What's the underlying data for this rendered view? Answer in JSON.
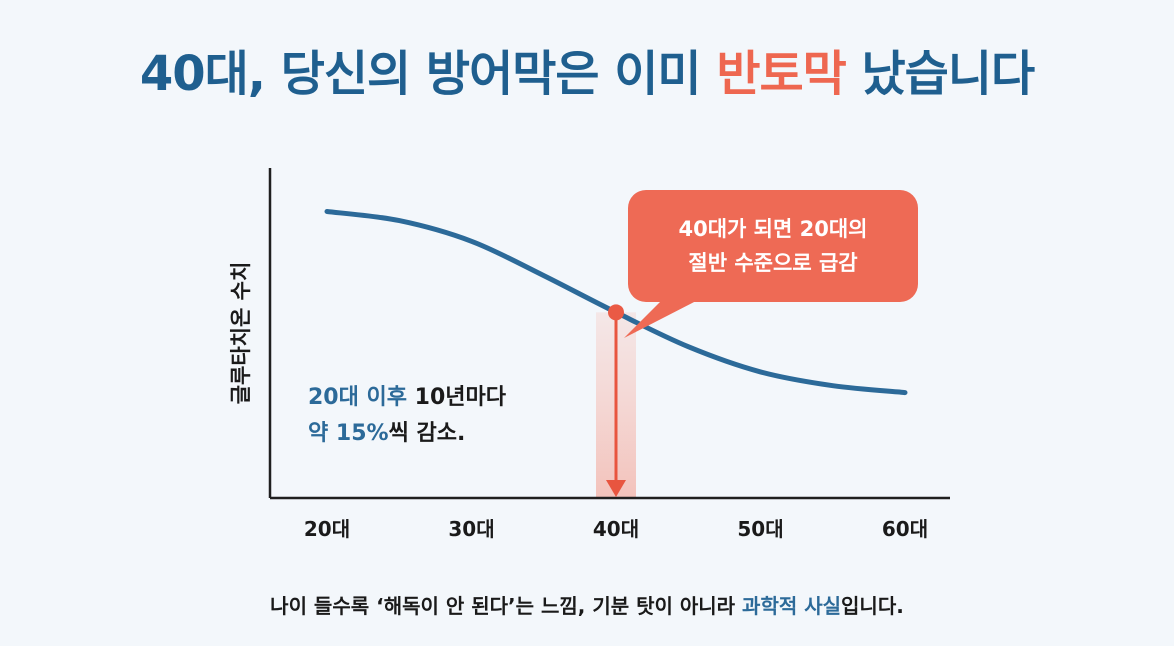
{
  "title": {
    "part1": "40대, 당신의 방어막은 이미",
    "accent": "반토막",
    "part2": "났습니다"
  },
  "callout": {
    "line1": "40대가 되면 20대의",
    "line2": "절반 수준으로 급감"
  },
  "note": {
    "line1_blue": "20대 이후",
    "line1_rest": "10년마다",
    "line2_blue": "약 15%",
    "line2_rest": "씩 감소."
  },
  "footer": {
    "part1": "나이 들수록 ‘해독이 안 된다’는 느낌, 기분 탓이 아니라",
    "blue": "과학적 사실",
    "part2": "입니다."
  },
  "colors": {
    "title_blue": "#1f5f8f",
    "accent_red": "#ee6750",
    "curve_blue": "#2c6a99",
    "background": "#f3f7fb"
  },
  "chart_data": {
    "type": "line",
    "ylabel": "글루타치온 수치",
    "xlabel": "",
    "categories": [
      "20대",
      "30대",
      "40대",
      "50대",
      "60대"
    ],
    "x": [
      20,
      25,
      30,
      35,
      40,
      45,
      50,
      55,
      60
    ],
    "series": [
      {
        "values": [
          100,
          96,
          87,
          72,
          56,
          41,
          30,
          24,
          21
        ]
      }
    ],
    "ylim": [
      -25,
      105
    ],
    "highlight": {
      "x": 40,
      "label": "40대"
    },
    "y_ticks": "none",
    "grid": false
  }
}
